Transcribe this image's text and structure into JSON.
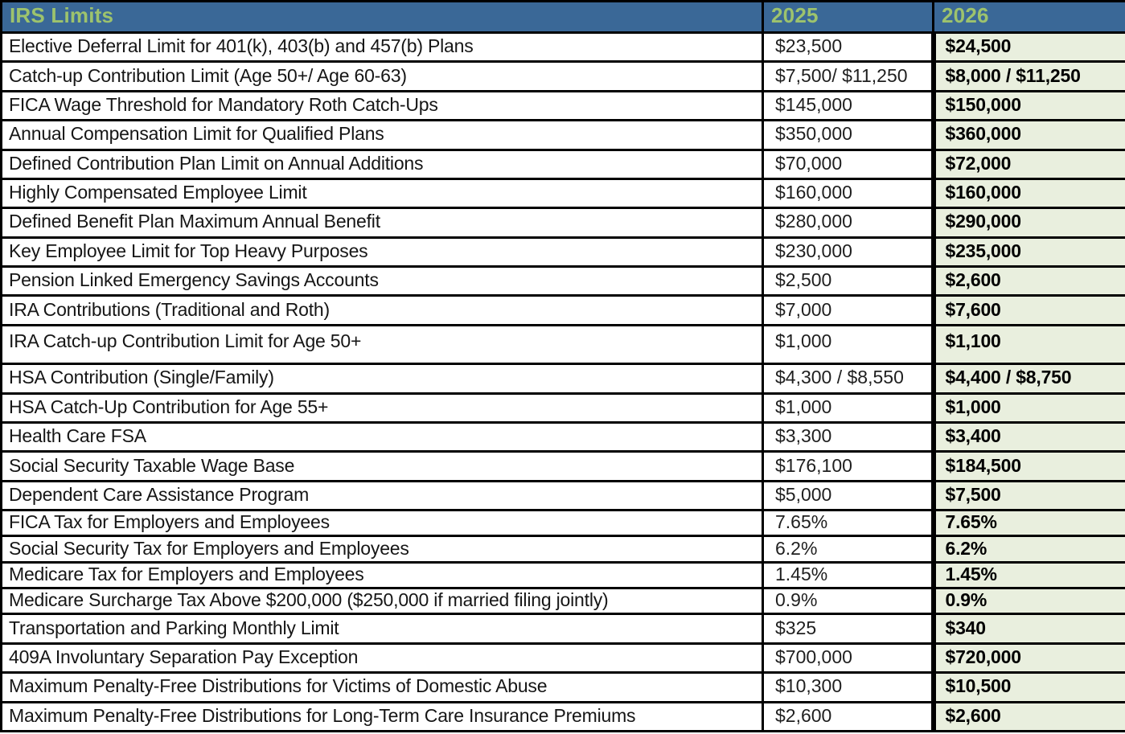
{
  "colors": {
    "header_bg": "#3a6897",
    "header_text": "#9dc36d",
    "col_2026_bg": "#e9efde",
    "border": "#000000"
  },
  "table": {
    "header": {
      "title": "IRS Limits",
      "year_2025": "2025",
      "year_2026": "2026"
    },
    "rows": [
      {
        "label": "Elective Deferral Limit for 401(k), 403(b) and 457(b) Plans",
        "v2025": "$23,500",
        "v2026": "$24,500"
      },
      {
        "label": "Catch-up Contribution Limit (Age 50+/ Age 60-63)",
        "v2025": "$7,500/ $11,250",
        "v2026": "$8,000 / $11,250"
      },
      {
        "label": "FICA Wage Threshold for Mandatory Roth Catch-Ups",
        "v2025": "$145,000",
        "v2026": "$150,000"
      },
      {
        "label": "Annual Compensation Limit for Qualified Plans",
        "v2025": "$350,000",
        "v2026": "$360,000"
      },
      {
        "label": "Defined Contribution Plan Limit on Annual Additions",
        "v2025": "$70,000",
        "v2026": "$72,000"
      },
      {
        "label": "Highly Compensated Employee Limit",
        "v2025": "$160,000",
        "v2026": "$160,000"
      },
      {
        "label": "Defined Benefit Plan Maximum Annual Benefit",
        "v2025": "$280,000",
        "v2026": "$290,000"
      },
      {
        "label": "Key Employee Limit for Top Heavy Purposes",
        "v2025": "$230,000",
        "v2026": "$235,000"
      },
      {
        "label": "Pension Linked Emergency Savings Accounts",
        "v2025": "$2,500",
        "v2026": "$2,600"
      },
      {
        "label": "IRA Contributions (Traditional and Roth)",
        "v2025": "$7,000",
        "v2026": "$7,600"
      },
      {
        "label": "IRA Catch-up Contribution Limit for Age 50+",
        "v2025": "$1,000",
        "v2026": "$1,100"
      },
      {
        "label": "HSA Contribution (Single/Family)",
        "v2025": "$4,300 / $8,550",
        "v2026": "$4,400 / $8,750"
      },
      {
        "label": "HSA Catch-Up Contribution for Age 55+",
        "v2025": "$1,000",
        "v2026": "$1,000"
      },
      {
        "label": "Health Care FSA",
        "v2025": "$3,300",
        "v2026": "$3,400"
      },
      {
        "label": "Social Security Taxable Wage Base",
        "v2025": "$176,100",
        "v2026": "$184,500"
      },
      {
        "label": "Dependent Care Assistance Program",
        "v2025": "$5,000",
        "v2026": "$7,500"
      },
      {
        "label": "FICA Tax for Employers and Employees",
        "v2025": "7.65%",
        "v2026": "7.65%"
      },
      {
        "label": "Social Security Tax for Employers and Employees",
        "v2025": "6.2%",
        "v2026": "6.2%"
      },
      {
        "label": "Medicare Tax for Employers and Employees",
        "v2025": "1.45%",
        "v2026": "1.45%"
      },
      {
        "label": "Medicare Surcharge Tax Above $200,000 ($250,000 if married filing jointly)",
        "v2025": "0.9%",
        "v2026": "0.9%"
      },
      {
        "label": "Transportation and Parking Monthly Limit",
        "v2025": "$325",
        "v2026": "$340"
      },
      {
        "label": "409A Involuntary Separation Pay Exception",
        "v2025": "$700,000",
        "v2026": "$720,000"
      },
      {
        "label": "Maximum Penalty-Free Distributions for Victims of Domestic Abuse",
        "v2025": "$10,300",
        "v2026": "$10,500"
      },
      {
        "label": "Maximum Penalty-Free Distributions for Long-Term Care Insurance Premiums",
        "v2025": "$2,600",
        "v2026": "$2,600"
      }
    ]
  }
}
